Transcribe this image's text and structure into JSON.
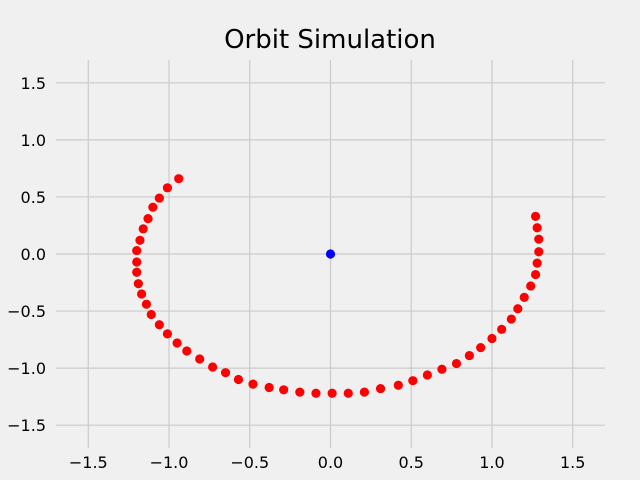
{
  "chart_data": {
    "type": "scatter",
    "title": "Orbit Simulation",
    "xlabel": "",
    "ylabel": "",
    "xlim": [
      -1.7,
      1.7
    ],
    "ylim": [
      -1.7,
      1.7
    ],
    "grid": true,
    "x_ticks": [
      -1.5,
      -1.0,
      -0.5,
      0.0,
      0.5,
      1.0,
      1.5
    ],
    "y_ticks": [
      -1.5,
      -1.0,
      -0.5,
      0.0,
      0.5,
      1.0,
      1.5
    ],
    "x_tick_labels": [
      "−1.5",
      "−1.0",
      "−0.5",
      "0.0",
      "0.5",
      "1.0",
      "1.5"
    ],
    "y_tick_labels": [
      "−1.5",
      "−1.0",
      "−0.5",
      "0.0",
      "0.5",
      "1.0",
      "1.5"
    ],
    "series": [
      {
        "color": "#0000ff",
        "points": [
          [
            0.0,
            0.0
          ]
        ]
      },
      {
        "color": "#ff0000",
        "points": [
          [
            -0.94,
            0.66
          ],
          [
            -1.01,
            0.58
          ],
          [
            -1.06,
            0.49
          ],
          [
            -1.1,
            0.41
          ],
          [
            -1.13,
            0.31
          ],
          [
            -1.16,
            0.22
          ],
          [
            -1.18,
            0.12
          ],
          [
            -1.2,
            0.03
          ],
          [
            -1.2,
            -0.07
          ],
          [
            -1.2,
            -0.16
          ],
          [
            -1.19,
            -0.26
          ],
          [
            -1.17,
            -0.35
          ],
          [
            -1.14,
            -0.44
          ],
          [
            -1.11,
            -0.53
          ],
          [
            -1.06,
            -0.62
          ],
          [
            -1.01,
            -0.7
          ],
          [
            -0.95,
            -0.78
          ],
          [
            -0.89,
            -0.85
          ],
          [
            -0.81,
            -0.92
          ],
          [
            -0.73,
            -0.99
          ],
          [
            -0.65,
            -1.04
          ],
          [
            -0.57,
            -1.1
          ],
          [
            -0.48,
            -1.14
          ],
          [
            -0.38,
            -1.17
          ],
          [
            -0.29,
            -1.19
          ],
          [
            -0.19,
            -1.21
          ],
          [
            -0.09,
            -1.22
          ],
          [
            0.01,
            -1.22
          ],
          [
            0.11,
            -1.22
          ],
          [
            0.21,
            -1.21
          ],
          [
            0.31,
            -1.18
          ],
          [
            0.42,
            -1.15
          ],
          [
            0.51,
            -1.11
          ],
          [
            0.6,
            -1.06
          ],
          [
            0.69,
            -1.01
          ],
          [
            0.78,
            -0.96
          ],
          [
            0.86,
            -0.89
          ],
          [
            0.93,
            -0.82
          ],
          [
            1.0,
            -0.74
          ],
          [
            1.06,
            -0.66
          ],
          [
            1.12,
            -0.57
          ],
          [
            1.16,
            -0.48
          ],
          [
            1.2,
            -0.38
          ],
          [
            1.24,
            -0.28
          ],
          [
            1.27,
            -0.18
          ],
          [
            1.28,
            -0.08
          ],
          [
            1.29,
            0.02
          ],
          [
            1.29,
            0.13
          ],
          [
            1.28,
            0.23
          ],
          [
            1.27,
            0.33
          ]
        ]
      }
    ]
  }
}
